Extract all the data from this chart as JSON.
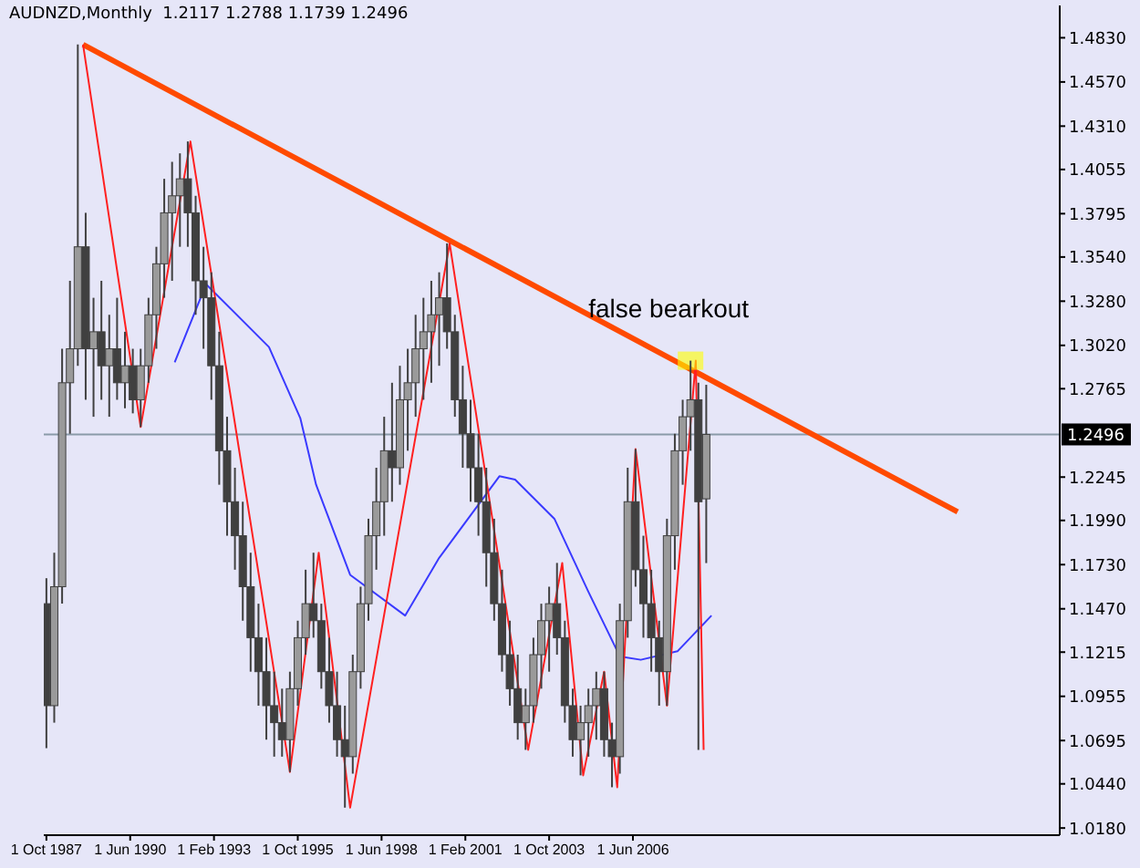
{
  "chart_data": {
    "type": "candlestick",
    "title": "AUDNZD,Monthly  1.2117 1.2788 1.1739 1.2496",
    "color": "#404040",
    "x": [
      "1987-10",
      "1988-01",
      "1988-04",
      "1988-07",
      "1988-10",
      "1989-01",
      "1989-04",
      "1989-07",
      "1989-10",
      "1990-01",
      "1990-04",
      "1990-07",
      "1990-10",
      "1991-01",
      "1991-04",
      "1991-07",
      "1991-10",
      "1992-01",
      "1992-04",
      "1992-07",
      "1992-10",
      "1993-01",
      "1993-04",
      "1993-07",
      "1993-10",
      "1994-01",
      "1994-04",
      "1994-07",
      "1994-10",
      "1995-01",
      "1995-04",
      "1995-07",
      "1995-10",
      "1996-01",
      "1996-04",
      "1996-07",
      "1996-10",
      "1997-01",
      "1997-04",
      "1997-07",
      "1997-10",
      "1998-01",
      "1998-04",
      "1998-07",
      "1998-10",
      "1999-01",
      "1999-04",
      "1999-07",
      "1999-10",
      "2000-01",
      "2000-04",
      "2000-07",
      "2000-10",
      "2001-01",
      "2001-04",
      "2001-07",
      "2001-10",
      "2002-01",
      "2002-04",
      "2002-07",
      "2002-10",
      "2003-01",
      "2003-04",
      "2003-07",
      "2003-10",
      "2004-01",
      "2004-04",
      "2004-07",
      "2004-10",
      "2005-01",
      "2005-04",
      "2005-07",
      "2005-10",
      "2006-01",
      "2006-04",
      "2006-07",
      "2006-10",
      "2007-01",
      "2007-04",
      "2007-07",
      "2007-10",
      "2008-01",
      "2008-04",
      "2008-07",
      "2008-10"
    ],
    "ohlc": [
      [
        1.15,
        1.165,
        1.065,
        1.09
      ],
      [
        1.09,
        1.18,
        1.08,
        1.16
      ],
      [
        1.16,
        1.3,
        1.15,
        1.28
      ],
      [
        1.28,
        1.34,
        1.25,
        1.3
      ],
      [
        1.3,
        1.479,
        1.29,
        1.36
      ],
      [
        1.36,
        1.38,
        1.27,
        1.3
      ],
      [
        1.3,
        1.33,
        1.26,
        1.31
      ],
      [
        1.31,
        1.34,
        1.27,
        1.29
      ],
      [
        1.29,
        1.32,
        1.26,
        1.3
      ],
      [
        1.3,
        1.33,
        1.27,
        1.28
      ],
      [
        1.28,
        1.31,
        1.265,
        1.29
      ],
      [
        1.29,
        1.3,
        1.262,
        1.27
      ],
      [
        1.27,
        1.3,
        1.254,
        1.29
      ],
      [
        1.29,
        1.33,
        1.28,
        1.32
      ],
      [
        1.32,
        1.36,
        1.3,
        1.35
      ],
      [
        1.35,
        1.4,
        1.33,
        1.38
      ],
      [
        1.38,
        1.41,
        1.34,
        1.39
      ],
      [
        1.39,
        1.415,
        1.36,
        1.4
      ],
      [
        1.4,
        1.422,
        1.36,
        1.38
      ],
      [
        1.38,
        1.39,
        1.32,
        1.34
      ],
      [
        1.34,
        1.36,
        1.3,
        1.33
      ],
      [
        1.33,
        1.345,
        1.27,
        1.29
      ],
      [
        1.29,
        1.31,
        1.22,
        1.24
      ],
      [
        1.24,
        1.26,
        1.19,
        1.21
      ],
      [
        1.21,
        1.23,
        1.17,
        1.19
      ],
      [
        1.19,
        1.21,
        1.14,
        1.16
      ],
      [
        1.16,
        1.18,
        1.11,
        1.13
      ],
      [
        1.13,
        1.15,
        1.09,
        1.11
      ],
      [
        1.11,
        1.13,
        1.07,
        1.09
      ],
      [
        1.09,
        1.11,
        1.06,
        1.08
      ],
      [
        1.08,
        1.1,
        1.06,
        1.07
      ],
      [
        1.07,
        1.11,
        1.051,
        1.1
      ],
      [
        1.1,
        1.14,
        1.09,
        1.13
      ],
      [
        1.13,
        1.17,
        1.12,
        1.15
      ],
      [
        1.15,
        1.18,
        1.13,
        1.14
      ],
      [
        1.14,
        1.15,
        1.1,
        1.11
      ],
      [
        1.11,
        1.13,
        1.08,
        1.09
      ],
      [
        1.09,
        1.11,
        1.06,
        1.07
      ],
      [
        1.07,
        1.09,
        1.03,
        1.06
      ],
      [
        1.06,
        1.12,
        1.05,
        1.11
      ],
      [
        1.11,
        1.16,
        1.1,
        1.15
      ],
      [
        1.15,
        1.2,
        1.14,
        1.19
      ],
      [
        1.19,
        1.23,
        1.17,
        1.21
      ],
      [
        1.21,
        1.26,
        1.19,
        1.24
      ],
      [
        1.24,
        1.28,
        1.21,
        1.23
      ],
      [
        1.23,
        1.29,
        1.22,
        1.27
      ],
      [
        1.27,
        1.3,
        1.24,
        1.28
      ],
      [
        1.28,
        1.32,
        1.26,
        1.3
      ],
      [
        1.3,
        1.33,
        1.27,
        1.31
      ],
      [
        1.31,
        1.34,
        1.28,
        1.32
      ],
      [
        1.32,
        1.345,
        1.29,
        1.33
      ],
      [
        1.33,
        1.362,
        1.3,
        1.31
      ],
      [
        1.31,
        1.32,
        1.26,
        1.27
      ],
      [
        1.27,
        1.29,
        1.23,
        1.25
      ],
      [
        1.25,
        1.27,
        1.21,
        1.23
      ],
      [
        1.23,
        1.25,
        1.19,
        1.21
      ],
      [
        1.21,
        1.23,
        1.16,
        1.18
      ],
      [
        1.18,
        1.2,
        1.14,
        1.15
      ],
      [
        1.15,
        1.17,
        1.11,
        1.12
      ],
      [
        1.12,
        1.14,
        1.09,
        1.1
      ],
      [
        1.1,
        1.12,
        1.07,
        1.08
      ],
      [
        1.08,
        1.1,
        1.064,
        1.09
      ],
      [
        1.09,
        1.13,
        1.08,
        1.12
      ],
      [
        1.12,
        1.15,
        1.1,
        1.14
      ],
      [
        1.14,
        1.16,
        1.11,
        1.15
      ],
      [
        1.15,
        1.174,
        1.12,
        1.13
      ],
      [
        1.13,
        1.14,
        1.08,
        1.09
      ],
      [
        1.09,
        1.1,
        1.06,
        1.07
      ],
      [
        1.07,
        1.09,
        1.049,
        1.08
      ],
      [
        1.08,
        1.1,
        1.06,
        1.09
      ],
      [
        1.09,
        1.11,
        1.07,
        1.1
      ],
      [
        1.1,
        1.11,
        1.06,
        1.07
      ],
      [
        1.07,
        1.08,
        1.042,
        1.06
      ],
      [
        1.06,
        1.15,
        1.05,
        1.14
      ],
      [
        1.14,
        1.23,
        1.13,
        1.21
      ],
      [
        1.21,
        1.241,
        1.16,
        1.17
      ],
      [
        1.17,
        1.19,
        1.13,
        1.15
      ],
      [
        1.15,
        1.17,
        1.11,
        1.13
      ],
      [
        1.13,
        1.14,
        1.09,
        1.11
      ],
      [
        1.11,
        1.2,
        1.09,
        1.19
      ],
      [
        1.19,
        1.25,
        1.17,
        1.24
      ],
      [
        1.24,
        1.27,
        1.22,
        1.26
      ],
      [
        1.26,
        1.293,
        1.24,
        1.27
      ],
      [
        1.27,
        1.28,
        1.064,
        1.21
      ],
      [
        1.2117,
        1.2788,
        1.1739,
        1.2496
      ]
    ],
    "series": [
      {
        "type": "line",
        "color": "#ff2020",
        "x": [
          "1988-12",
          "1990-10",
          "1992-05",
          "1995-07",
          "1996-06",
          "1997-06",
          "2000-08",
          "2003-02",
          "2004-03",
          "2004-11",
          "2005-07",
          "2005-12",
          "2006-07",
          "2007-07",
          "2008-06",
          "2008-09"
        ],
        "values": [
          1.479,
          1.254,
          1.422,
          1.051,
          1.18,
          1.03,
          1.362,
          1.064,
          1.174,
          1.049,
          1.11,
          1.042,
          1.241,
          1.09,
          1.293,
          1.064
        ]
      },
      {
        "type": "line",
        "color": "#3a3aff",
        "x": [
          "1991-11",
          "1992-11",
          "1994-11",
          "1995-11",
          "1996-05",
          "1997-06",
          "1999-03",
          "2000-04",
          "2002-03",
          "2002-09",
          "2003-12",
          "2005-01",
          "2006-01",
          "2006-09",
          "2007-11",
          "2008-12"
        ],
        "values": [
          1.292,
          1.338,
          1.301,
          1.259,
          1.22,
          1.167,
          1.143,
          1.177,
          1.225,
          1.223,
          1.2,
          1.157,
          1.119,
          1.117,
          1.122,
          1.143
        ]
      },
      {
        "type": "line",
        "color": "#ff4a00",
        "x": [
          "1988-12",
          "2016-10"
        ],
        "values": [
          1.479,
          1.204
        ]
      }
    ],
    "xlim": [
      "1987-09",
      "2020-01"
    ],
    "xticks": [
      {
        "value": "1987-10-01",
        "label": "1 Oct 1987"
      },
      {
        "value": "1990-06-01",
        "label": "1 Jun 1990"
      },
      {
        "value": "1993-02-01",
        "label": "1 Feb 1993"
      },
      {
        "value": "1995-10-01",
        "label": "1 Oct 1995"
      },
      {
        "value": "1998-06-01",
        "label": "1 Jun 1998"
      },
      {
        "value": "2001-02-01",
        "label": "1 Feb 2001"
      },
      {
        "value": "2003-10-01",
        "label": "1 Oct 2003"
      },
      {
        "value": "2006-06-01",
        "label": "1 Jun 2006"
      }
    ],
    "ylim": [
      1.0138,
      1.502
    ],
    "yticks": [
      {
        "value": 1.018,
        "label": "1.0180"
      },
      {
        "value": 1.044,
        "label": "1.0440"
      },
      1.0695,
      1.0955,
      1.1215,
      {
        "value": 1.147,
        "label": "1.1470"
      },
      {
        "value": 1.173,
        "label": "1.1730"
      },
      {
        "value": 1.199,
        "label": "1.1990"
      },
      1.2245,
      1.2765,
      {
        "value": 1.302,
        "label": "1.3020"
      },
      {
        "value": 1.328,
        "label": "1.3280"
      },
      {
        "value": 1.354,
        "label": "1.3540"
      },
      1.3795,
      1.4055,
      {
        "value": 1.431,
        "label": "1.4310"
      },
      {
        "value": 1.457,
        "label": "1.4570"
      },
      {
        "value": 1.483,
        "label": "1.4830"
      }
    ],
    "ref_lines": [
      {
        "axis": "y",
        "value": 1.2496,
        "label": "1.2496",
        "color": "#8a9aa8"
      }
    ],
    "annotations": [
      {
        "text": "false bearkout",
        "x": "2008-04",
        "y": 1.293
      }
    ]
  }
}
